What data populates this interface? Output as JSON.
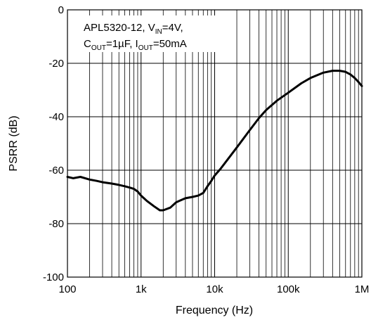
{
  "chart_data": {
    "type": "line",
    "xlabel": "Frequency (Hz)",
    "ylabel": "PSRR (dB)",
    "x_scale": "log",
    "xlim": [
      100,
      1000000
    ],
    "ylim": [
      -100,
      0
    ],
    "grid": true,
    "x_ticks": [
      {
        "value": 100,
        "label": "100"
      },
      {
        "value": 1000,
        "label": "1k"
      },
      {
        "value": 10000,
        "label": "10k"
      },
      {
        "value": 100000,
        "label": "100k"
      },
      {
        "value": 1000000,
        "label": "1M"
      }
    ],
    "y_ticks": [
      {
        "value": 0,
        "label": "0"
      },
      {
        "value": -20,
        "label": "-20"
      },
      {
        "value": -40,
        "label": "-40"
      },
      {
        "value": -60,
        "label": "-60"
      },
      {
        "value": -80,
        "label": "-80"
      },
      {
        "value": -100,
        "label": "-100"
      }
    ],
    "annotation": {
      "line1": {
        "a": "APL5320-12, V",
        "b": "IN",
        "c": "=4V,"
      },
      "line2": {
        "a": "C",
        "b": "OUT",
        "c": "=1µF, I",
        "d": "OUT",
        "e": "=50mA"
      }
    },
    "series": [
      {
        "x": [
          100,
          120,
          150,
          200,
          250,
          300,
          400,
          500,
          600,
          700,
          800,
          900,
          1000,
          1200,
          1500,
          1800,
          2000,
          2500,
          3000,
          4000,
          5000,
          6000,
          7000,
          8000,
          9000,
          10000,
          12000,
          15000,
          20000,
          30000,
          40000,
          50000,
          70000,
          100000,
          150000,
          200000,
          300000,
          400000,
          500000,
          600000,
          700000,
          800000,
          900000,
          1000000
        ],
        "y": [
          -62.5,
          -63,
          -62.5,
          -63.5,
          -64,
          -64.5,
          -65,
          -65.5,
          -66,
          -66.5,
          -67,
          -68,
          -69.5,
          -71.5,
          -73.5,
          -75,
          -75,
          -74,
          -72,
          -70.5,
          -70,
          -69.5,
          -68.5,
          -66,
          -64,
          -62,
          -59.5,
          -56,
          -51.5,
          -45,
          -40.5,
          -37.5,
          -34,
          -31,
          -27.5,
          -25.5,
          -23.5,
          -22.8,
          -22.8,
          -23.2,
          -24.2,
          -25.5,
          -27,
          -28.5
        ]
      }
    ]
  }
}
